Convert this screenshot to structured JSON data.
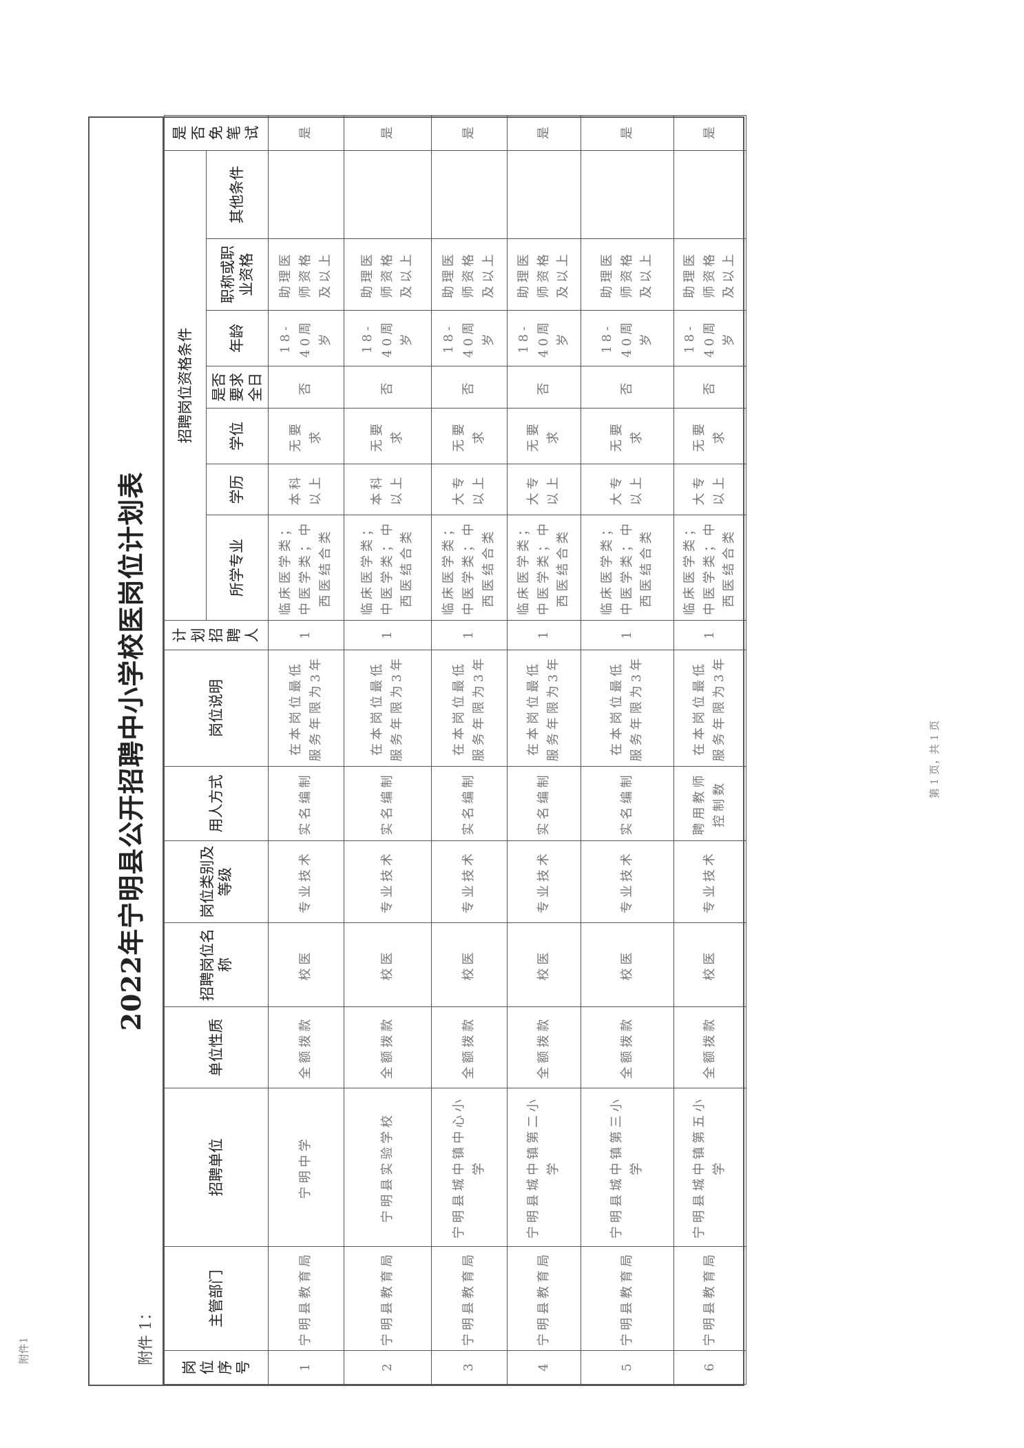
{
  "page_label": "附件1",
  "annex_label": "附件 1：",
  "title": "2022年宁明县公开招聘中小学校医岗位计划表",
  "footer": "第 1 页，共 1 页",
  "headers": {
    "seq": "岗位序号",
    "dept": "主管部门",
    "unit": "招聘单位",
    "unit_type": "单位性质",
    "post_name": "招聘岗位名称",
    "post_cat": "岗位类别及等级",
    "employ": "用人方式",
    "post_desc": "岗位说明",
    "plan": "计划招聘人",
    "qual_group": "招聘岗位资格条件",
    "major": "所学专业",
    "edu": "学历",
    "degree": "学位",
    "fulltime": "是否要求全日",
    "age": "年龄",
    "title_cert": "职称或职业资格",
    "other": "其他条件",
    "exempt": "是否免笔试"
  },
  "rows": [
    {
      "seq": "1",
      "dept": "宁明县教育局",
      "unit": "宁明中学",
      "unit_type": "全额拨款",
      "post_name": "校医",
      "post_cat": "专业技术",
      "employ": "实名编制",
      "post_desc": "在本岗位最低服务年限为3年",
      "plan": "1",
      "major": "临床医学类；中医学类；中西医结合类",
      "edu": "本科以上",
      "degree": "无要求",
      "fulltime": "否",
      "age": "18-40周岁",
      "title_cert": "助理医师资格及以上",
      "other": "",
      "exempt": "是"
    },
    {
      "seq": "2",
      "dept": "宁明县教育局",
      "unit": "宁明县实验学校",
      "unit_type": "全额拨款",
      "post_name": "校医",
      "post_cat": "专业技术",
      "employ": "实名编制",
      "post_desc": "在本岗位最低服务年限为3年",
      "plan": "1",
      "major": "临床医学类；中医学类；中西医结合类",
      "edu": "本科以上",
      "degree": "无要求",
      "fulltime": "否",
      "age": "18-40周岁",
      "title_cert": "助理医师资格及以上",
      "other": "",
      "exempt": "是"
    },
    {
      "seq": "3",
      "dept": "宁明县教育局",
      "unit": "宁明县城中镇中心小学",
      "unit_type": "全额拨款",
      "post_name": "校医",
      "post_cat": "专业技术",
      "employ": "实名编制",
      "post_desc": "在本岗位最低服务年限为3年",
      "plan": "1",
      "major": "临床医学类；中医学类；中西医结合类",
      "edu": "大专以上",
      "degree": "无要求",
      "fulltime": "否",
      "age": "18-40周岁",
      "title_cert": "助理医师资格及以上",
      "other": "",
      "exempt": "是"
    },
    {
      "seq": "4",
      "dept": "宁明县教育局",
      "unit": "宁明县城中镇第二小学",
      "unit_type": "全额拨款",
      "post_name": "校医",
      "post_cat": "专业技术",
      "employ": "实名编制",
      "post_desc": "在本岗位最低服务年限为3年",
      "plan": "1",
      "major": "临床医学类；中医学类；中西医结合类",
      "edu": "大专以上",
      "degree": "无要求",
      "fulltime": "否",
      "age": "18-40周岁",
      "title_cert": "助理医师资格及以上",
      "other": "",
      "exempt": "是"
    },
    {
      "seq": "5",
      "dept": "宁明县教育局",
      "unit": "宁明县城中镇第三小学",
      "unit_type": "全额拨款",
      "post_name": "校医",
      "post_cat": "专业技术",
      "employ": "实名编制",
      "post_desc": "在本岗位最低服务年限为3年",
      "plan": "1",
      "major": "临床医学类；中医学类；中西医结合类",
      "edu": "大专以上",
      "degree": "无要求",
      "fulltime": "否",
      "age": "18-40周岁",
      "title_cert": "助理医师资格及以上",
      "other": "",
      "exempt": "是"
    },
    {
      "seq": "6",
      "dept": "宁明县教育局",
      "unit": "宁明县城中镇第五小学",
      "unit_type": "全额拨款",
      "post_name": "校医",
      "post_cat": "专业技术",
      "employ": "聘用教师控制数",
      "post_desc": "在本岗位最低服务年限为3年",
      "plan": "1",
      "major": "临床医学类；中医学类；中西医结合类",
      "edu": "大专以上",
      "degree": "无要求",
      "fulltime": "否",
      "age": "18-40周岁",
      "title_cert": "助理医师资格及以上",
      "other": "",
      "exempt": "是"
    }
  ]
}
